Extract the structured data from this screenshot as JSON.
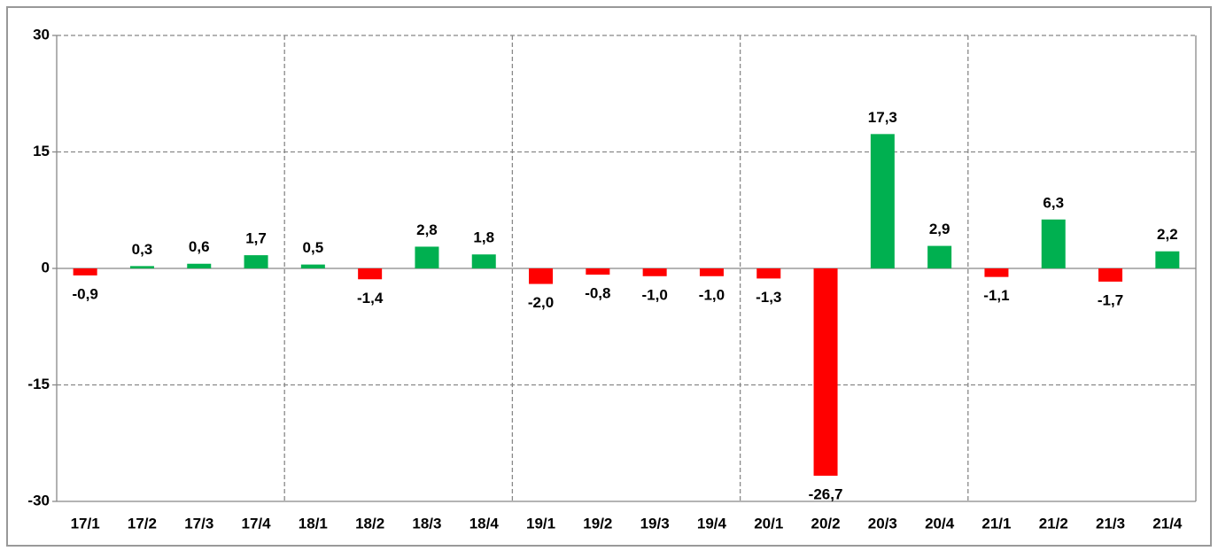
{
  "chart_data": {
    "type": "bar",
    "categories": [
      "17/1",
      "17/2",
      "17/3",
      "17/4",
      "18/1",
      "18/2",
      "18/3",
      "18/4",
      "19/1",
      "19/2",
      "19/3",
      "19/4",
      "20/1",
      "20/2",
      "20/3",
      "20/4",
      "21/1",
      "21/2",
      "21/3",
      "21/4"
    ],
    "values": [
      -0.9,
      0.3,
      0.6,
      1.7,
      0.5,
      -1.4,
      2.8,
      1.8,
      -2.0,
      -0.8,
      -1.0,
      -1.0,
      -1.3,
      -26.7,
      17.3,
      2.9,
      -1.1,
      6.3,
      -1.7,
      2.2
    ],
    "value_labels": [
      "-0,9",
      "0,3",
      "0,6",
      "1,7",
      "0,5",
      "-1,4",
      "2,8",
      "1,8",
      "-2,0",
      "-0,8",
      "-1,0",
      "-1,0",
      "-1,3",
      "-26,7",
      "17,3",
      "2,9",
      "-1,1",
      "6,3",
      "-1,7",
      "2,2"
    ],
    "positive_color": "#00b050",
    "negative_color": "#ff0000",
    "ylim": [
      -30,
      30
    ],
    "yticks": [
      30,
      15,
      0,
      -15,
      -30
    ],
    "grid": true
  }
}
